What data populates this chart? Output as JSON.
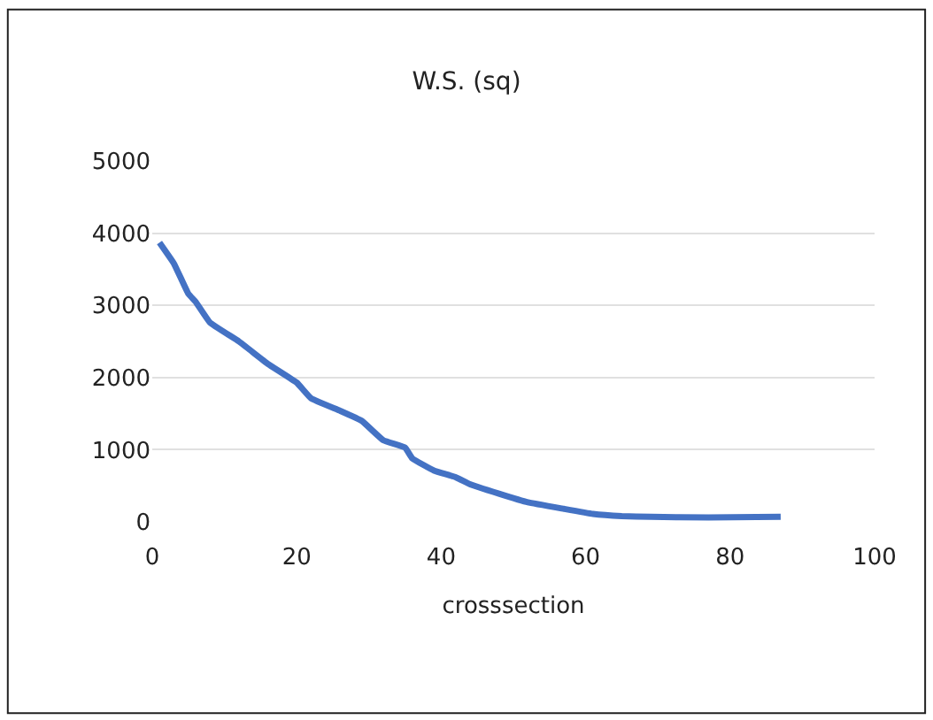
{
  "chart_data": {
    "type": "line",
    "title": "W.S. (sq)",
    "xlabel": "crosssection",
    "x": [
      1,
      3,
      5,
      6,
      8,
      12,
      16,
      20,
      22,
      26,
      29,
      32,
      35,
      36,
      39,
      42,
      44,
      48,
      52,
      57,
      61,
      65,
      69,
      77,
      87
    ],
    "series": [
      {
        "color": "#4472c4",
        "values": [
          3870,
          3580,
          3160,
          3050,
          2760,
          2500,
          2190,
          1930,
          1710,
          1540,
          1400,
          1130,
          1030,
          880,
          710,
          620,
          520,
          390,
          270,
          180,
          110,
          80,
          70,
          60,
          70
        ]
      }
    ],
    "xlim": [
      0,
      100
    ],
    "xticks": [
      0,
      20,
      40,
      60,
      80,
      100
    ],
    "ylim": [
      0,
      5000
    ],
    "yticks": [
      0,
      1000,
      2000,
      3000,
      4000,
      5000
    ],
    "grid": "y",
    "marker": "none",
    "line_style": "solid"
  }
}
